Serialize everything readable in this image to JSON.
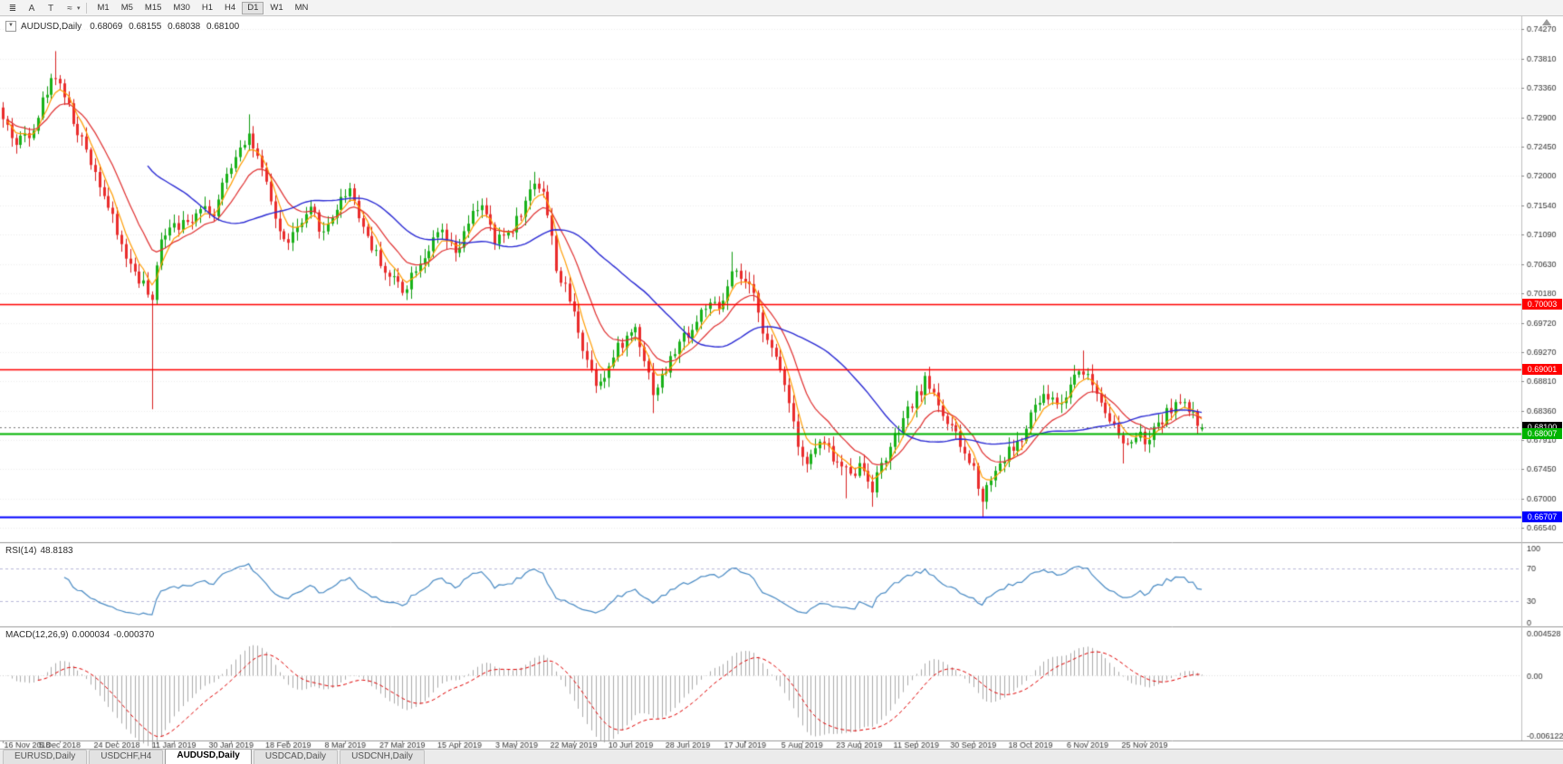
{
  "toolbar": {
    "icons": [
      {
        "name": "chart-list-icon",
        "glyph": "≣"
      },
      {
        "name": "cursor-a-icon",
        "glyph": "A"
      },
      {
        "name": "text-tool-icon",
        "glyph": "T"
      },
      {
        "name": "indicator-zigzag-icon",
        "glyph": "≈"
      }
    ],
    "dropdown_glyph": "▾",
    "timeframes": [
      {
        "label": "M1"
      },
      {
        "label": "M5"
      },
      {
        "label": "M15"
      },
      {
        "label": "M30"
      },
      {
        "label": "H1"
      },
      {
        "label": "H4"
      },
      {
        "label": "D1"
      },
      {
        "label": "W1"
      },
      {
        "label": "MN"
      }
    ],
    "active_timeframe": "D1"
  },
  "chart": {
    "symbol": "AUDUSD,Daily",
    "dropdown_glyph": "▼",
    "ohlc": {
      "open": "0.68069",
      "high": "0.68155",
      "low": "0.68038",
      "close": "0.68100"
    }
  },
  "rsi": {
    "label": "RSI(14)",
    "value": "48.8183",
    "axis": [
      "100",
      "70",
      "30",
      "0"
    ],
    "axis_values": [
      100,
      70,
      30,
      0
    ],
    "dashed_levels": [
      70,
      30
    ]
  },
  "macd": {
    "label": "MACD(12,26,9)",
    "value_main": "0.000034",
    "value_signal": "-0.000370",
    "axis_top": "0.004528",
    "axis_zero": "0.00",
    "axis_bottom": "-0.0061220"
  },
  "tabs": [
    {
      "label": "EURUSD,Daily",
      "active": false
    },
    {
      "label": "USDCHF,H4",
      "active": false
    },
    {
      "label": "AUDUSD,Daily",
      "active": true
    },
    {
      "label": "USDCAD,Daily",
      "active": false
    },
    {
      "label": "USDCNH,Daily",
      "active": false
    }
  ],
  "chart_data": {
    "type": "candlestick",
    "symbol": "AUDUSD",
    "timeframe": "Daily",
    "candles_count": 274,
    "seed": 42,
    "price_range": {
      "max": 0.7447,
      "min": 0.6632
    },
    "price_axis": [
      "0.74270",
      "0.73810",
      "0.73360",
      "0.72900",
      "0.72450",
      "0.72000",
      "0.71540",
      "0.71090",
      "0.70630",
      "0.70180",
      "0.69720",
      "0.69270",
      "0.68810",
      "0.68360",
      "0.67910",
      "0.67450",
      "0.67000",
      "0.66540"
    ],
    "levels": [
      {
        "label": "0.70003",
        "price": 0.70003,
        "color": "#ff0000",
        "type": "resistance"
      },
      {
        "label": "0.69001",
        "price": 0.69001,
        "color": "#ff0000",
        "type": "resistance"
      },
      {
        "label": "0.68100",
        "price": 0.681,
        "color": "#000000",
        "type": "current-price"
      },
      {
        "label": "0.68007",
        "price": 0.68007,
        "color": "#00b400",
        "type": "support"
      },
      {
        "label": "0.66707",
        "price": 0.66707,
        "color": "#0000ff",
        "type": "support"
      }
    ],
    "date_labels": [
      "16 Nov 2018",
      "5 Dec 2018",
      "24 Dec 2018",
      "11 Jan 2019",
      "30 Jan 2019",
      "18 Feb 2019",
      "8 Mar 2019",
      "27 Mar 2019",
      "15 Apr 2019",
      "3 May 2019",
      "22 May 2019",
      "10 Jun 2019",
      "28 Jun 2019",
      "17 Jul 2019",
      "5 Aug 2019",
      "23 Aug 2019",
      "11 Sep 2019",
      "30 Sep 2019",
      "18 Oct 2019",
      "6 Nov 2019",
      "25 Nov 2019"
    ],
    "label_step": 13,
    "close_anchors": [
      [
        0,
        0.7285
      ],
      [
        3,
        0.725
      ],
      [
        6,
        0.727
      ],
      [
        9,
        0.732
      ],
      [
        12,
        0.736
      ],
      [
        14,
        0.733
      ],
      [
        17,
        0.726
      ],
      [
        20,
        0.7225
      ],
      [
        23,
        0.718
      ],
      [
        26,
        0.7105
      ],
      [
        29,
        0.706
      ],
      [
        32,
        0.7035
      ],
      [
        34,
        0.6995
      ],
      [
        36,
        0.7105
      ],
      [
        39,
        0.714
      ],
      [
        42,
        0.7125
      ],
      [
        45,
        0.7165
      ],
      [
        48,
        0.7145
      ],
      [
        51,
        0.7195
      ],
      [
        54,
        0.7255
      ],
      [
        56,
        0.727
      ],
      [
        58,
        0.7225
      ],
      [
        61,
        0.715
      ],
      [
        64,
        0.7095
      ],
      [
        67,
        0.7115
      ],
      [
        70,
        0.7135
      ],
      [
        73,
        0.711
      ],
      [
        76,
        0.7155
      ],
      [
        79,
        0.7185
      ],
      [
        82,
        0.7125
      ],
      [
        85,
        0.708
      ],
      [
        88,
        0.7045
      ],
      [
        91,
        0.7025
      ],
      [
        94,
        0.7065
      ],
      [
        97,
        0.7095
      ],
      [
        100,
        0.7105
      ],
      [
        103,
        0.707
      ],
      [
        106,
        0.712
      ],
      [
        109,
        0.716
      ],
      [
        112,
        0.709
      ],
      [
        115,
        0.711
      ],
      [
        118,
        0.7145
      ],
      [
        121,
        0.719
      ],
      [
        123,
        0.7185
      ],
      [
        126,
        0.706
      ],
      [
        129,
        0.7005
      ],
      [
        132,
        0.694
      ],
      [
        135,
        0.6885
      ],
      [
        138,
        0.691
      ],
      [
        141,
        0.694
      ],
      [
        144,
        0.6965
      ],
      [
        146,
        0.6925
      ],
      [
        148,
        0.687
      ],
      [
        151,
        0.69
      ],
      [
        154,
        0.694
      ],
      [
        157,
        0.6965
      ],
      [
        160,
        0.7
      ],
      [
        163,
        0.6985
      ],
      [
        166,
        0.704
      ],
      [
        169,
        0.703
      ],
      [
        172,
        0.699
      ],
      [
        175,
        0.6925
      ],
      [
        178,
        0.6885
      ],
      [
        181,
        0.6795
      ],
      [
        183,
        0.676
      ],
      [
        186,
        0.6785
      ],
      [
        189,
        0.676
      ],
      [
        192,
        0.674
      ],
      [
        195,
        0.6755
      ],
      [
        198,
        0.6725
      ],
      [
        201,
        0.6765
      ],
      [
        204,
        0.68
      ],
      [
        207,
        0.684
      ],
      [
        210,
        0.688
      ],
      [
        212,
        0.6865
      ],
      [
        215,
        0.682
      ],
      [
        218,
        0.6775
      ],
      [
        221,
        0.6745
      ],
      [
        223,
        0.6705
      ],
      [
        226,
        0.675
      ],
      [
        229,
        0.6775
      ],
      [
        232,
        0.679
      ],
      [
        235,
        0.684
      ],
      [
        238,
        0.6855
      ],
      [
        241,
        0.6845
      ],
      [
        244,
        0.6895
      ],
      [
        246,
        0.6905
      ],
      [
        249,
        0.6865
      ],
      [
        252,
        0.6835
      ],
      [
        255,
        0.6775
      ],
      [
        258,
        0.6795
      ],
      [
        261,
        0.6785
      ],
      [
        264,
        0.6825
      ],
      [
        267,
        0.685
      ],
      [
        270,
        0.6832
      ],
      [
        272,
        0.6815
      ],
      [
        273,
        0.681
      ]
    ],
    "specials": [
      {
        "i": 12,
        "high": 0.7393
      },
      {
        "i": 34,
        "low": 0.6838
      },
      {
        "i": 56,
        "high": 0.7295
      },
      {
        "i": 121,
        "high": 0.7206
      },
      {
        "i": 135,
        "low": 0.6865
      },
      {
        "i": 148,
        "low": 0.6832
      },
      {
        "i": 166,
        "high": 0.7082
      },
      {
        "i": 183,
        "low": 0.6748
      },
      {
        "i": 192,
        "low": 0.67
      },
      {
        "i": 198,
        "low": 0.6687
      },
      {
        "i": 223,
        "low": 0.6671
      },
      {
        "i": 246,
        "high": 0.6929
      },
      {
        "i": 255,
        "low": 0.6754
      }
    ],
    "last_candle": {
      "open": 0.68069,
      "high": 0.68155,
      "low": 0.68038,
      "close": 0.681
    },
    "moving_averages": [
      {
        "name": "fast",
        "period": 5,
        "method": "ema",
        "color": "#ff9c00"
      },
      {
        "name": "medium",
        "period": 13,
        "method": "ema",
        "color": "#e03030"
      },
      {
        "name": "slow",
        "period": 34,
        "method": "sma",
        "color": "#2b2bd4"
      }
    ],
    "rsi_period": 14,
    "macd_params": [
      12,
      26,
      9
    ],
    "macd_range": {
      "max": 0.004528,
      "min": -0.006122
    },
    "colors": {
      "candle_up": "#19b219",
      "candle_up_border": "#0f9b0f",
      "candle_down": "#ea2c2c",
      "candle_down_border": "#d81f1f",
      "rsi_line": "#4a8bc4",
      "macd_histogram": "#ababab",
      "macd_signal": "#e00000",
      "grid": "#ededed",
      "divider": "#9a9a9a"
    }
  }
}
